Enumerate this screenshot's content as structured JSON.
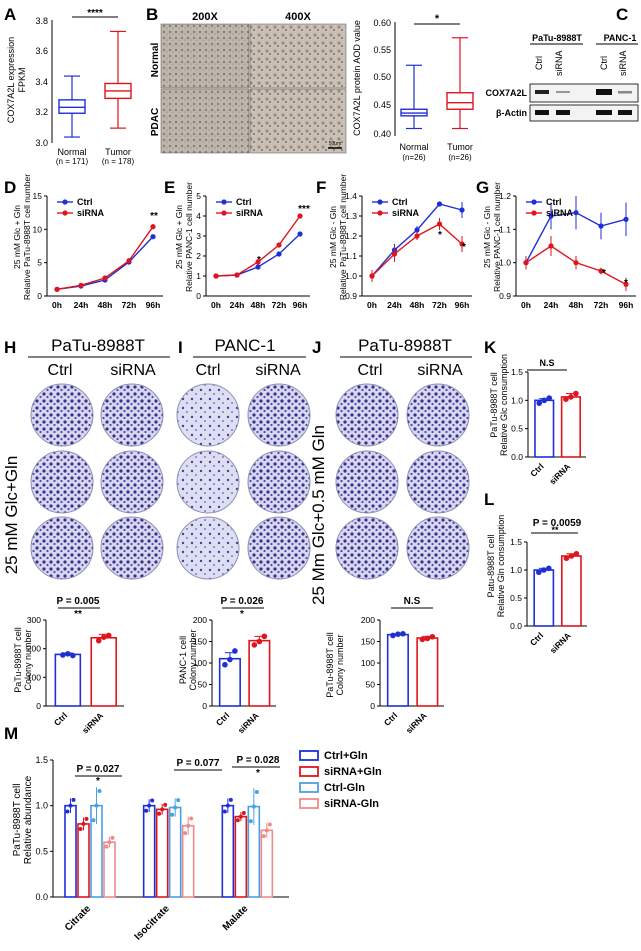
{
  "panels": {
    "A": {
      "letter": "A",
      "ylabel_1": "COX7A2L expression",
      "ylabel_2": "FPKM",
      "yticks": [
        "3.8",
        "3.6",
        "3.4",
        "3.2",
        "3.0"
      ],
      "groups": [
        {
          "name": "Normal",
          "n": "(n = 171)",
          "q1": 3.2,
          "median": 3.24,
          "q3": 3.29,
          "min": 3.04,
          "max": 3.45
        },
        {
          "name": "Tumor",
          "n": "(n = 178)",
          "q1": 3.3,
          "median": 3.35,
          "q3": 3.4,
          "min": 3.1,
          "max": 3.75
        }
      ],
      "sig": "****"
    },
    "B": {
      "letter": "B",
      "mag": [
        "200X",
        "400X"
      ],
      "rows": [
        "Normal",
        "PDAC"
      ],
      "scalebar": "50μm",
      "ylabel_1": "COX7A2L protein AOD value",
      "yticks": [
        "0.60",
        "0.55",
        "0.50",
        "0.45",
        "0.40"
      ],
      "groups": [
        {
          "name": "Normal",
          "n": "(n=26)",
          "q1": 0.433,
          "median": 0.438,
          "q3": 0.445,
          "min": 0.41,
          "max": 0.525
        },
        {
          "name": "Tumor",
          "n": "(n=26)",
          "q1": 0.445,
          "median": 0.457,
          "q3": 0.475,
          "min": 0.41,
          "max": 0.575
        }
      ],
      "sig": "*"
    },
    "C": {
      "letter": "C",
      "lines": [
        "PaTu-8988T",
        "PANC-1"
      ],
      "lanes": [
        "Ctrl",
        "siRNA",
        "Ctrl",
        "siRNA"
      ],
      "bands": [
        "COX7A2L",
        "β-Actin"
      ]
    },
    "D": {
      "letter": "D",
      "ylabel_1": "25 mM Glc + Gln",
      "ylabel_2": "Relative PaTu-8988T cell number",
      "yticks": [
        "15",
        "10",
        "5",
        "0"
      ],
      "ymax": 15,
      "star": "**"
    },
    "E": {
      "letter": "E",
      "ylabel_1": "25 mM Glc + Gln",
      "ylabel_2": "Relative PANC-1 cell number",
      "yticks": [
        "5",
        "4",
        "3",
        "2",
        "1",
        "0"
      ],
      "ymin": 0,
      "ymax": 5,
      "stars": [
        "*",
        "***"
      ]
    },
    "F": {
      "letter": "F",
      "ylabel_1": "25 mM Glc - Gln",
      "ylabel_2": "Relative PaTu-8988T cell number",
      "yticks": [
        "1.4",
        "1.3",
        "1.2",
        "1.1",
        "1.0",
        "0.9"
      ],
      "ymin": 0.9,
      "ymax": 1.4,
      "stars": [
        "*",
        "*"
      ]
    },
    "G": {
      "letter": "G",
      "ylabel_1": "25 mM Glc - Gln",
      "ylabel_2": "Relative PANC-1 cell number",
      "yticks": [
        "1.2",
        "1.1",
        "1.0",
        "0.9"
      ],
      "ymin": 0.9,
      "ymax": 1.2,
      "stars": [
        "*",
        "*"
      ]
    },
    "H": {
      "letter": "H",
      "cell": "PaTu-8988T",
      "cols": [
        "Ctrl",
        "siRNA"
      ],
      "side": "25 mM Glc+Gln"
    },
    "I": {
      "letter": "I",
      "cell": "PANC-1",
      "cols": [
        "Ctrl",
        "siRNA"
      ]
    },
    "J": {
      "letter": "J",
      "cell": "PaTu-8988T",
      "cols": [
        "Ctrl",
        "siRNA"
      ],
      "side": "25 Mm Glc+0.5 mM Gln"
    },
    "K": {
      "letter": "K",
      "ylabel_1": "PaTu-8988T cell",
      "ylabel_2": "Relative Glc consumption",
      "yticks": [
        "1.5",
        "1.0",
        "0.5",
        "0.0"
      ],
      "sig": "N.S"
    },
    "L": {
      "letter": "L",
      "ylabel_1": "Patu-8988T cell",
      "ylabel_2": "Relative Gln consumption",
      "yticks": [
        "1.5",
        "1.0",
        "0.5",
        "0.0"
      ],
      "p": "P = 0.0059",
      "sig": "**"
    },
    "Hbar": {
      "ylabel_1": "PaTu-8988T cell",
      "ylabel_2": "Colony number",
      "yticks": [
        "300",
        "200",
        "100",
        "0"
      ],
      "p": "P = 0.005",
      "sig": "**"
    },
    "Ibar": {
      "ylabel_1": "PANC-1 cell",
      "ylabel_2": "Colony number",
      "yticks": [
        "200",
        "150",
        "100",
        "50",
        "0"
      ],
      "p": "P = 0.026",
      "sig": "*"
    },
    "Jbar": {
      "ylabel_1": "PaTu-8988T cell",
      "ylabel_2": "Colony number",
      "yticks": [
        "200",
        "150",
        "100",
        "50",
        "0"
      ],
      "sig": "N.S"
    },
    "M": {
      "letter": "M",
      "ylabel_1": "PaTu-8988T cell",
      "ylabel_2": "Relative abundance",
      "yticks": [
        "1.5",
        "1.0",
        "0.5",
        "0.0"
      ],
      "pvals": [
        "P = 0.027",
        "P = 0.077",
        "P = 0.028"
      ],
      "sig": "*"
    }
  },
  "chart_data": [
    {
      "type": "line",
      "panel": "D",
      "x": [
        "0h",
        "24h",
        "48h",
        "72h",
        "96h"
      ],
      "ylim": [
        0,
        15
      ],
      "series": [
        {
          "name": "Ctrl",
          "color": "#1f2fd6",
          "values": [
            1,
            1.5,
            2.4,
            5.1,
            8.9
          ],
          "err": [
            0.1,
            0.1,
            0.2,
            0.3,
            0.3
          ]
        },
        {
          "name": "siRNA",
          "color": "#e0141e",
          "values": [
            1,
            1.6,
            2.7,
            5.3,
            10.4
          ],
          "err": [
            0.1,
            0.1,
            0.2,
            0.3,
            0.4
          ]
        }
      ]
    },
    {
      "type": "line",
      "panel": "E",
      "x": [
        "0h",
        "24h",
        "48h",
        "72h",
        "96h"
      ],
      "ylim": [
        0,
        5
      ],
      "series": [
        {
          "name": "Ctrl",
          "color": "#1f2fd6",
          "values": [
            1,
            1.05,
            1.45,
            2.1,
            3.1
          ],
          "err": [
            0.03,
            0.05,
            0.06,
            0.06,
            0.08
          ]
        },
        {
          "name": "siRNA",
          "color": "#e0141e",
          "values": [
            1,
            1.05,
            1.7,
            2.55,
            4.0
          ],
          "err": [
            0.03,
            0.05,
            0.06,
            0.07,
            0.1
          ]
        }
      ]
    },
    {
      "type": "line",
      "panel": "F",
      "x": [
        "0h",
        "24h",
        "48h",
        "72h",
        "96h"
      ],
      "ylim": [
        0.9,
        1.4
      ],
      "series": [
        {
          "name": "Ctrl",
          "color": "#1f2fd6",
          "values": [
            1.0,
            1.13,
            1.23,
            1.36,
            1.33
          ],
          "err": [
            0.03,
            0.03,
            0.02,
            0.01,
            0.04
          ]
        },
        {
          "name": "siRNA",
          "color": "#e0141e",
          "values": [
            1.0,
            1.11,
            1.2,
            1.26,
            1.16
          ],
          "err": [
            0.03,
            0.04,
            0.02,
            0.03,
            0.04
          ]
        }
      ]
    },
    {
      "type": "line",
      "panel": "G",
      "x": [
        "0h",
        "24h",
        "48h",
        "72h",
        "96h"
      ],
      "ylim": [
        0.9,
        1.2
      ],
      "series": [
        {
          "name": "Ctrl",
          "color": "#1f2fd6",
          "values": [
            1.0,
            1.14,
            1.15,
            1.11,
            1.13
          ],
          "err": [
            0.02,
            0.04,
            0.05,
            0.04,
            0.05
          ]
        },
        {
          "name": "siRNA",
          "color": "#e0141e",
          "values": [
            1.0,
            1.05,
            1.0,
            0.975,
            0.935
          ],
          "err": [
            0.02,
            0.03,
            0.02,
            0.01,
            0.02
          ]
        }
      ]
    },
    {
      "type": "bar",
      "panel": "Hbar",
      "categories": [
        "Ctrl",
        "siRNA"
      ],
      "values": [
        180,
        238
      ],
      "err": [
        5,
        12
      ],
      "ylim": [
        0,
        300
      ],
      "points": [
        [
          178,
          182,
          176
        ],
        [
          228,
          240,
          246
        ]
      ]
    },
    {
      "type": "bar",
      "panel": "Ibar",
      "categories": [
        "Ctrl",
        "siRNA"
      ],
      "values": [
        110,
        152
      ],
      "err": [
        14,
        10
      ],
      "ylim": [
        0,
        200
      ],
      "points": [
        [
          96,
          108,
          128
        ],
        [
          142,
          150,
          162
        ]
      ]
    },
    {
      "type": "bar",
      "panel": "Jbar",
      "categories": [
        "Ctrl",
        "siRNA"
      ],
      "values": [
        166,
        158
      ],
      "err": [
        2,
        4
      ],
      "ylim": [
        0,
        200
      ],
      "points": [
        [
          164,
          167,
          168
        ],
        [
          155,
          157,
          161
        ]
      ]
    },
    {
      "type": "bar",
      "panel": "K",
      "categories": [
        "Ctrl",
        "siRNA"
      ],
      "values": [
        1.0,
        1.06
      ],
      "err": [
        0.03,
        0.06
      ],
      "ylim": [
        0,
        1.5
      ],
      "points": [
        [
          0.95,
          1.0,
          1.04
        ],
        [
          1.02,
          1.06,
          1.12
        ]
      ]
    },
    {
      "type": "bar",
      "panel": "L",
      "categories": [
        "Ctrl",
        "siRNA"
      ],
      "values": [
        1.0,
        1.25
      ],
      "err": [
        0.03,
        0.04
      ],
      "ylim": [
        0,
        1.5
      ],
      "points": [
        [
          0.96,
          1.0,
          1.03
        ],
        [
          1.21,
          1.25,
          1.29
        ]
      ]
    },
    {
      "type": "bar",
      "panel": "M",
      "categories": [
        "Citrate",
        "Isocitrate",
        "Malate"
      ],
      "ylim": [
        0,
        1.5
      ],
      "series": [
        {
          "name": "Ctrl+Gln",
          "color": "#1f2fd6",
          "values": [
            1.0,
            1.0,
            1.0
          ],
          "err": [
            0.08,
            0.07,
            0.08
          ]
        },
        {
          "name": "siRNA+Gln",
          "color": "#e0141e",
          "values": [
            0.8,
            0.96,
            0.88
          ],
          "err": [
            0.07,
            0.06,
            0.05
          ]
        },
        {
          "name": "Ctrl-Gln",
          "color": "#4aa0e6",
          "values": [
            1.0,
            0.98,
            0.99
          ],
          "err": [
            0.2,
            0.1,
            0.2
          ]
        },
        {
          "name": "siRNA-Gln",
          "color": "#f08a8a",
          "values": [
            0.6,
            0.78,
            0.73
          ],
          "err": [
            0.06,
            0.1,
            0.08
          ]
        }
      ]
    }
  ]
}
